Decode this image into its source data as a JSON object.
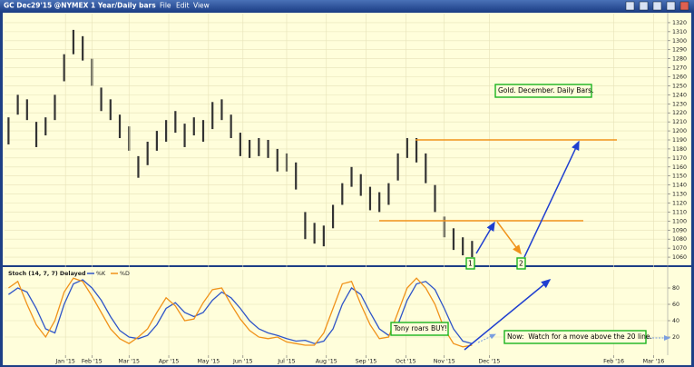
{
  "window": {
    "symbol": "GC Dec29'15 @NYMEX",
    "period": "1 Year/Daily bars",
    "menu": [
      "File",
      "Edit",
      "View"
    ]
  },
  "annotations": {
    "title_box": "Gold. December. Daily Bars.",
    "label_1": "1",
    "label_2": "2",
    "buy": "Tony roars BUY!",
    "now": "Now:  Watch for a move above the 20 line."
  },
  "chart_data": [
    {
      "type": "ohlc",
      "grid": true,
      "color": "#333333",
      "x": [
        3,
        10,
        17,
        24,
        31,
        38,
        45,
        52,
        59,
        66,
        73,
        80,
        87,
        94,
        101,
        108,
        115,
        122,
        129,
        136,
        143,
        150,
        157,
        164,
        171,
        178,
        185,
        192,
        199,
        206,
        213,
        220,
        227,
        234,
        241,
        248,
        255,
        262,
        269,
        276,
        283,
        290,
        297,
        304,
        311,
        318,
        325,
        332,
        339,
        346,
        353
      ],
      "high": [
        1215,
        1240,
        1235,
        1210,
        1215,
        1240,
        1285,
        1312,
        1305,
        1280,
        1248,
        1235,
        1218,
        1205,
        1172,
        1188,
        1200,
        1212,
        1222,
        1208,
        1215,
        1212,
        1232,
        1235,
        1218,
        1198,
        1190,
        1192,
        1190,
        1180,
        1175,
        1165,
        1110,
        1098,
        1095,
        1118,
        1142,
        1160,
        1152,
        1138,
        1132,
        1142,
        1175,
        1192,
        1192,
        1175,
        1140,
        1105,
        1092,
        1082,
        1078
      ],
      "low": [
        1185,
        1218,
        1212,
        1182,
        1195,
        1212,
        1255,
        1285,
        1278,
        1250,
        1222,
        1212,
        1192,
        1178,
        1148,
        1162,
        1178,
        1188,
        1198,
        1182,
        1195,
        1188,
        1202,
        1212,
        1192,
        1172,
        1170,
        1172,
        1170,
        1155,
        1155,
        1135,
        1080,
        1075,
        1072,
        1092,
        1118,
        1138,
        1128,
        1112,
        1110,
        1118,
        1145,
        1170,
        1165,
        1142,
        1110,
        1082,
        1068,
        1062,
        1060
      ],
      "xlim": [
        0,
        500
      ],
      "ylim": [
        1051,
        1328
      ],
      "yticks": [
        1060,
        1070,
        1080,
        1090,
        1100,
        1110,
        1120,
        1130,
        1140,
        1150,
        1160,
        1170,
        1180,
        1190,
        1200,
        1210,
        1220,
        1230,
        1240,
        1250,
        1260,
        1270,
        1280,
        1290,
        1300,
        1310,
        1320
      ]
    },
    {
      "type": "line",
      "title": "Stoch (14, 7, 7) Delayed",
      "grid": true,
      "x": [
        3,
        10,
        17,
        24,
        31,
        38,
        45,
        52,
        59,
        66,
        73,
        80,
        87,
        94,
        101,
        108,
        115,
        122,
        129,
        136,
        143,
        150,
        157,
        164,
        171,
        178,
        185,
        192,
        199,
        206,
        213,
        220,
        227,
        234,
        241,
        248,
        255,
        262,
        269,
        276,
        283,
        290,
        297,
        304,
        311,
        318,
        325,
        332,
        339,
        346,
        353
      ],
      "series": [
        {
          "name": "%K",
          "color": "#2f55c8",
          "values": [
            72,
            80,
            75,
            55,
            30,
            25,
            60,
            85,
            90,
            80,
            65,
            45,
            28,
            20,
            18,
            22,
            35,
            55,
            62,
            50,
            45,
            50,
            65,
            75,
            68,
            55,
            40,
            30,
            25,
            22,
            18,
            15,
            16,
            12,
            15,
            30,
            60,
            80,
            72,
            50,
            30,
            22,
            35,
            65,
            85,
            88,
            78,
            55,
            30,
            15,
            12
          ]
        },
        {
          "name": "%D",
          "color": "#f0921a",
          "values": [
            80,
            88,
            60,
            35,
            20,
            40,
            75,
            92,
            88,
            70,
            50,
            30,
            18,
            12,
            20,
            30,
            50,
            68,
            58,
            40,
            42,
            62,
            78,
            80,
            60,
            42,
            28,
            20,
            18,
            20,
            14,
            12,
            10,
            10,
            25,
            55,
            85,
            88,
            60,
            35,
            18,
            20,
            50,
            80,
            92,
            80,
            60,
            30,
            12,
            8,
            10
          ]
        }
      ],
      "xlim": [
        0,
        500
      ],
      "ylim": [
        0,
        100
      ],
      "yticks": [
        20,
        40,
        60,
        80
      ],
      "xticks": [
        {
          "value": 46,
          "label": "Jan '15"
        },
        {
          "value": 66,
          "label": "Feb '15"
        },
        {
          "value": 94,
          "label": "Mar '15"
        },
        {
          "value": 124,
          "label": "Apr '15"
        },
        {
          "value": 154,
          "label": "May '15"
        },
        {
          "value": 180,
          "label": "Jun '15"
        },
        {
          "value": 213,
          "label": "Jul '15"
        },
        {
          "value": 243,
          "label": "Aug '15"
        },
        {
          "value": 273,
          "label": "Sep '15"
        },
        {
          "value": 303,
          "label": "Oct '15"
        },
        {
          "value": 332,
          "label": "Nov '15"
        },
        {
          "value": 366,
          "label": "Dec '15"
        },
        {
          "value": 460,
          "label": "Feb '16"
        },
        {
          "value": 490,
          "label": "Mar '16"
        }
      ]
    }
  ]
}
